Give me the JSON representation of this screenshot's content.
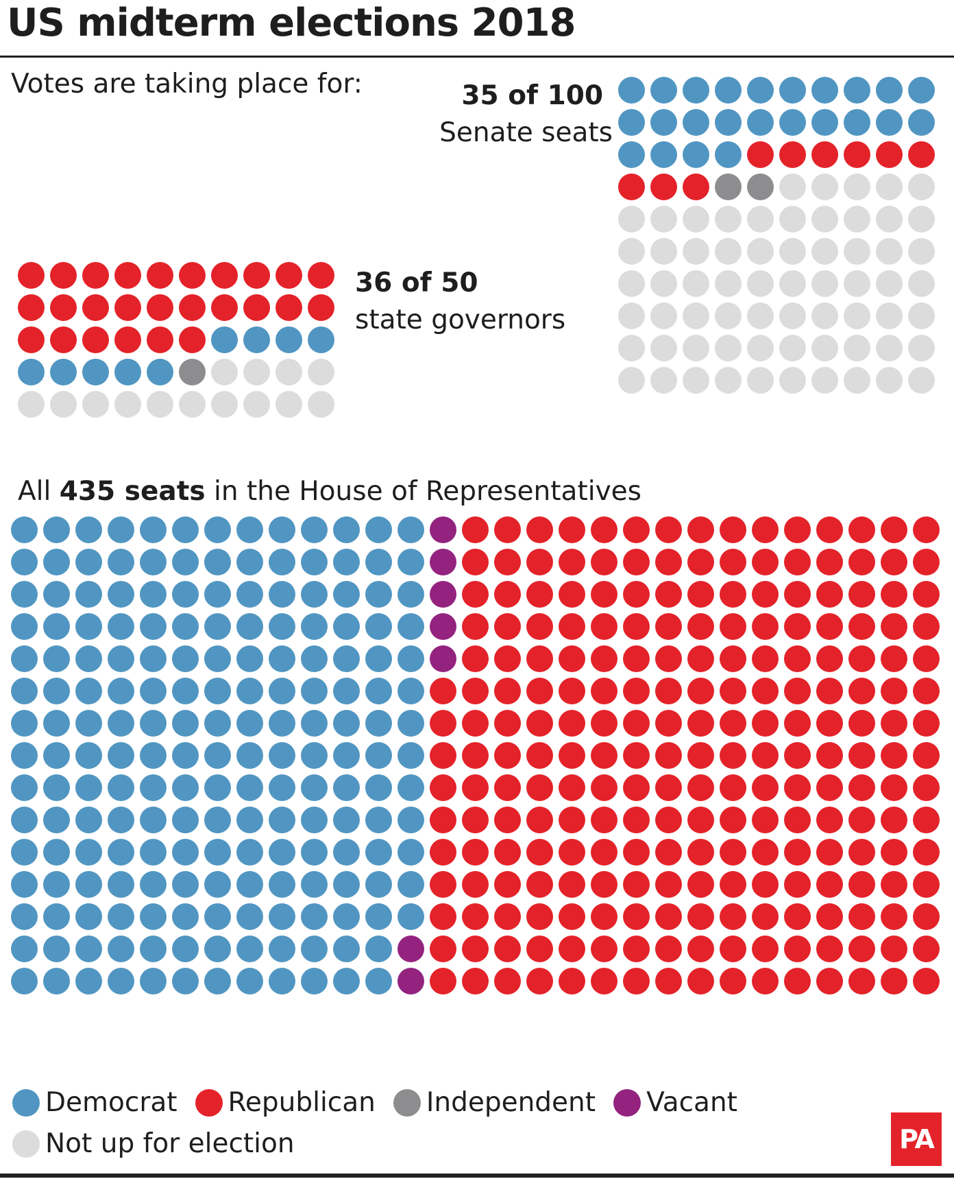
{
  "title": "US midterm elections 2018",
  "intro": "Votes are taking place for:",
  "colors": {
    "Democrat": "#5196c2",
    "Republican": "#e42229",
    "Independent": "#8d8d8f",
    "Vacant": "#93237f",
    "Not up for election": "#dcdcdd"
  },
  "senate": {
    "count_text": "35 of 100",
    "label": "Senate seats"
  },
  "governors": {
    "count_text": "36 of 50",
    "label": "state governors"
  },
  "house": {
    "caption_prefix": "All",
    "caption_bold": "435 seats",
    "caption_suffix": "in the House of Representatives"
  },
  "legend": [
    "Democrat",
    "Republican",
    "Independent",
    "Vacant",
    "Not up for election"
  ],
  "logo_text": "PA",
  "chart_data": [
    {
      "type": "waffle",
      "name": "Senate",
      "title": "35 of 100 Senate seats",
      "columns": 10,
      "rows": 10,
      "order": "row-major",
      "segments": [
        {
          "category": "Democrat",
          "count": 24
        },
        {
          "category": "Republican",
          "count": 9
        },
        {
          "category": "Independent",
          "count": 2
        },
        {
          "category": "Not up for election",
          "count": 65
        }
      ]
    },
    {
      "type": "waffle",
      "name": "Governors",
      "title": "36 of 50 state governors",
      "columns": 10,
      "rows": 5,
      "order": "row-major",
      "segments": [
        {
          "category": "Republican",
          "count": 26
        },
        {
          "category": "Democrat",
          "count": 9
        },
        {
          "category": "Independent",
          "count": 1
        },
        {
          "category": "Not up for election",
          "count": 14
        }
      ]
    },
    {
      "type": "waffle",
      "name": "House of Representatives",
      "title": "All 435 seats in the House of Representatives",
      "columns": 29,
      "rows": 15,
      "order": "column-major",
      "segments": [
        {
          "category": "Democrat",
          "count": 193
        },
        {
          "category": "Vacant",
          "count": 7
        },
        {
          "category": "Republican",
          "count": 235
        }
      ]
    }
  ]
}
